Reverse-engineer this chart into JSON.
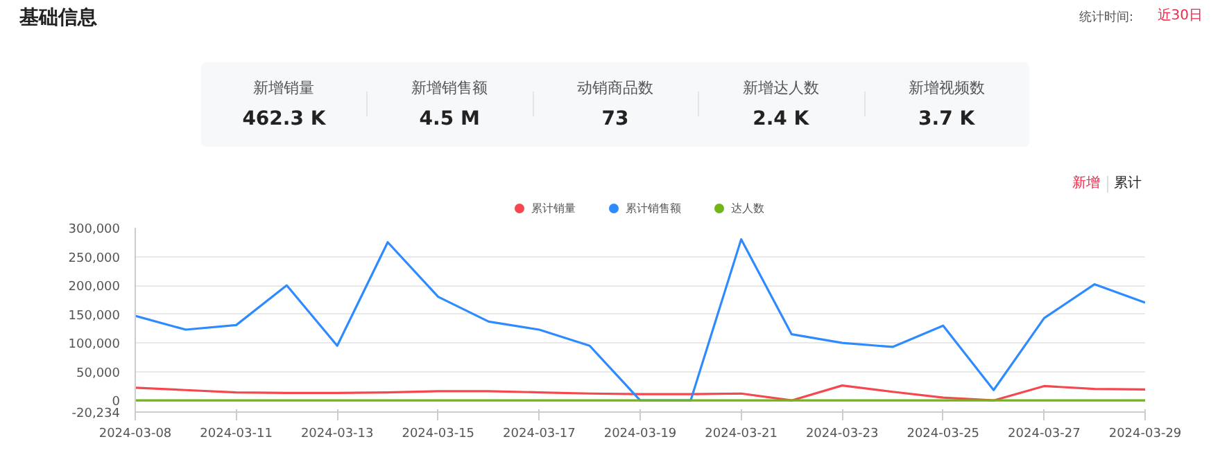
{
  "chart_data": [
    {
      "type": "other",
      "title": "基础信息",
      "annotations": [
        "统计时间:",
        "近30日",
        "新增销量",
        "462.3 K",
        "新增销售额",
        "4.5 M",
        "动销商品数",
        "73",
        "新增达人数",
        "2.4 K",
        "新增视频数",
        "3.7 K"
      ]
    },
    {
      "type": "line",
      "annotations": [
        "新增",
        "累计"
      ],
      "categories": [
        "2024-03-08",
        null,
        "2024-03-11",
        null,
        "2024-03-13",
        null,
        "2024-03-15",
        null,
        "2024-03-17",
        null,
        "2024-03-19",
        null,
        "2024-03-21",
        null,
        "2024-03-23",
        null,
        "2024-03-25",
        null,
        "2024-03-27",
        null,
        "2024-03-29"
      ],
      "series": [
        {
          "name": "累计销量",
          "color": "#f5484e",
          "values": [
            22000,
            18000,
            14000,
            13000,
            13000,
            14000,
            16000,
            16000,
            14000,
            12000,
            11000,
            11000,
            12000,
            0,
            26000,
            15000,
            5000,
            0,
            25000,
            20000,
            19000
          ]
        },
        {
          "name": "累计销售额",
          "color": "#2e8bff",
          "values": [
            147000,
            123000,
            131000,
            200000,
            95000,
            275000,
            180000,
            137000,
            123000,
            95000,
            0,
            0,
            280000,
            115000,
            100000,
            93000,
            130000,
            18000,
            143000,
            202000,
            170000
          ]
        },
        {
          "name": "达人数",
          "color": "#71b518",
          "values": [
            0,
            0,
            0,
            0,
            0,
            0,
            0,
            0,
            0,
            0,
            0,
            0,
            0,
            0,
            0,
            0,
            0,
            0,
            0,
            0,
            0
          ]
        }
      ],
      "ylim": [
        -20234,
        300000
      ],
      "yticks": [
        {
          "value": -20234,
          "label": "-20,234"
        },
        {
          "value": 0,
          "label": "0"
        },
        {
          "value": 50000,
          "label": "50,000"
        },
        {
          "value": 100000,
          "label": "100,000"
        },
        {
          "value": 150000,
          "label": "150,000"
        },
        {
          "value": 200000,
          "label": "200,000"
        },
        {
          "value": 250000,
          "label": "250,000"
        },
        {
          "value": 300000,
          "label": "300,000"
        }
      ],
      "grid": "y",
      "legend": "top",
      "marker": "none",
      "line_style": "solid"
    }
  ]
}
